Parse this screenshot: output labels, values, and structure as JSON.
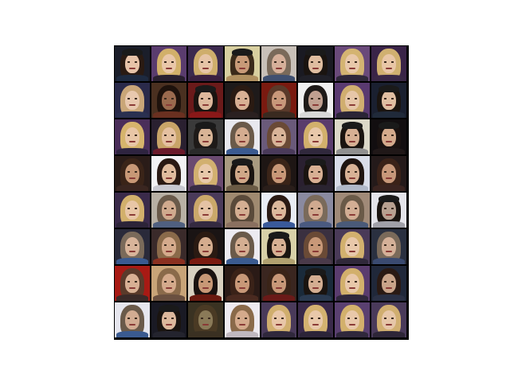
{
  "figure": {
    "rows": 8,
    "columns": 8,
    "tiles": [
      {
        "bg": "#1b1e2a",
        "hair": "#2a1a12",
        "skin": "#e7c3a8",
        "hat": true,
        "shoulder": "#1e2a40"
      },
      {
        "bg": "#5a3c6e",
        "hair": "#d2b06a",
        "skin": "#e9c7a9",
        "hat": false,
        "shoulder": "#2a2030"
      },
      {
        "bg": "#3c2a4e",
        "hair": "#cfae6c",
        "skin": "#e6c4a6",
        "hat": false,
        "shoulder": "#3a2040"
      },
      {
        "bg": "#d8cfa0",
        "hair": "#3a2a1a",
        "skin": "#c89a78",
        "hat": true,
        "shoulder": "#b09060"
      },
      {
        "bg": "#c8c0b8",
        "hair": "#7a6a5a",
        "skin": "#d6b09a",
        "hat": false,
        "shoulder": "#405070"
      },
      {
        "bg": "#1a1a22",
        "hair": "#1a1410",
        "skin": "#dfbda0",
        "hat": true,
        "shoulder": "#202028"
      },
      {
        "bg": "#6a4a7a",
        "hair": "#d4b472",
        "skin": "#e8c8aa",
        "hat": false,
        "shoulder": "#30283a"
      },
      {
        "bg": "#3a2448",
        "hair": "#d0b070",
        "skin": "#e8c6a6",
        "hat": false,
        "shoulder": "#3a2846"
      },
      {
        "bg": "#2a2a4a",
        "hair": "#c9a678",
        "skin": "#e8c8ae",
        "hat": false,
        "shoulder": "#2a3050"
      },
      {
        "bg": "#4a3020",
        "hair": "#1e120c",
        "skin": "#9a6a4e",
        "hat": false,
        "shoulder": "#6a3020"
      },
      {
        "bg": "#6a1a1a",
        "hair": "#1a1410",
        "skin": "#ddb89c",
        "hat": true,
        "shoulder": "#8a1818"
      },
      {
        "bg": "#1e1a1a",
        "hair": "#2a1a12",
        "skin": "#d8b094",
        "hat": false,
        "shoulder": "#2a2020"
      },
      {
        "bg": "#7a1a10",
        "hair": "#5a3a2a",
        "skin": "#c8987a",
        "hat": false,
        "shoulder": "#3a2a20"
      },
      {
        "bg": "#f0f0f0",
        "hair": "#1e1a18",
        "skin": "#c0a090",
        "hat": false,
        "shoulder": "#d8d8d8"
      },
      {
        "bg": "#5a3a70",
        "hair": "#d0ae70",
        "skin": "#e6c6a8",
        "hat": false,
        "shoulder": "#2a2436"
      },
      {
        "bg": "#1a2030",
        "hair": "#1a1410",
        "skin": "#e0bea2",
        "hat": true,
        "shoulder": "#202a3a"
      },
      {
        "bg": "#4a2e5a",
        "hair": "#d6b46c",
        "skin": "#e8c6a6",
        "hat": false,
        "shoulder": "#2e2440"
      },
      {
        "bg": "#2a2030",
        "hair": "#c8a468",
        "skin": "#e4c0a0",
        "hat": false,
        "shoulder": "#6a1a2a"
      },
      {
        "bg": "#3a3a3a",
        "hair": "#1e1a18",
        "skin": "#d8b496",
        "hat": true,
        "shoulder": "#2a2a2a"
      },
      {
        "bg": "#e8e8ee",
        "hair": "#6a5a4a",
        "skin": "#d4ac90",
        "hat": false,
        "shoulder": "#3a5a90"
      },
      {
        "bg": "#6a5a7a",
        "hair": "#6a4a36",
        "skin": "#d8b498",
        "hat": false,
        "shoulder": "#4a3a5a"
      },
      {
        "bg": "#5a3c6c",
        "hair": "#d2b06c",
        "skin": "#e8c8aa",
        "hat": false,
        "shoulder": "#30283c"
      },
      {
        "bg": "#dcd8c8",
        "hair": "#1a1410",
        "skin": "#d6b094",
        "hat": true,
        "shoulder": "#909090"
      },
      {
        "bg": "#120e10",
        "hair": "#1a1210",
        "skin": "#d4aa8c",
        "hat": true,
        "shoulder": "#201818"
      },
      {
        "bg": "#2a1c18",
        "hair": "#3a2418",
        "skin": "#c89876",
        "hat": false,
        "shoulder": "#3a2620"
      },
      {
        "bg": "#f2f2f4",
        "hair": "#2a1a14",
        "skin": "#e0bc9e",
        "hat": false,
        "shoulder": "#c8c8d0"
      },
      {
        "bg": "#6a4a70",
        "hair": "#d2b070",
        "skin": "#e8c8aa",
        "hat": false,
        "shoulder": "#3a2c44"
      },
      {
        "bg": "#a89a80",
        "hair": "#1a1410",
        "skin": "#d0a888",
        "hat": true,
        "shoulder": "#6a5a44"
      },
      {
        "bg": "#1e1614",
        "hair": "#3a2418",
        "skin": "#c89878",
        "hat": false,
        "shoulder": "#2a1e1a"
      },
      {
        "bg": "#2a2030",
        "hair": "#1a1410",
        "skin": "#d8b094",
        "hat": true,
        "shoulder": "#2a2430"
      },
      {
        "bg": "#d8dce8",
        "hair": "#1e1410",
        "skin": "#d8b296",
        "hat": false,
        "shoulder": "#b0b8c8"
      },
      {
        "bg": "#241a1a",
        "hair": "#3a2218",
        "skin": "#c8987a",
        "hat": false,
        "shoulder": "#3a2420"
      },
      {
        "bg": "#3a2a4a",
        "hair": "#d2b06c",
        "skin": "#e8c6a6",
        "hat": false,
        "shoulder": "#2c2438"
      },
      {
        "bg": "#b8b0a4",
        "hair": "#6a5a4a",
        "skin": "#d0aa8e",
        "hat": false,
        "shoulder": "#506080"
      },
      {
        "bg": "#4a3a5a",
        "hair": "#caa86a",
        "skin": "#e4c2a4",
        "hat": false,
        "shoulder": "#342a40"
      },
      {
        "bg": "#a08a70",
        "hair": "#5a4a3a",
        "skin": "#d4ae92",
        "hat": false,
        "shoulder": "#8a7060"
      },
      {
        "bg": "#e8ecf4",
        "hair": "#2a1a14",
        "skin": "#dcb89c",
        "hat": false,
        "shoulder": "#3a5a9a"
      },
      {
        "bg": "#8a8aa0",
        "hair": "#7a6a5a",
        "skin": "#d0aa90",
        "hat": false,
        "shoulder": "#4a5a80"
      },
      {
        "bg": "#a08a78",
        "hair": "#6a5a48",
        "skin": "#d2ae94",
        "hat": false,
        "shoulder": "#4a5a78"
      },
      {
        "bg": "#e4e4ea",
        "hair": "#1a1410",
        "skin": "#b8a090",
        "hat": true,
        "shoulder": "#a0a0a8"
      },
      {
        "bg": "#2a2a3a",
        "hair": "#7a6a5a",
        "skin": "#d8b49a",
        "hat": false,
        "shoulder": "#3a5a90"
      },
      {
        "bg": "#3a2a2a",
        "hair": "#8a6a4a",
        "skin": "#d4aa8c",
        "hat": false,
        "shoulder": "#8a3020"
      },
      {
        "bg": "#1a1414",
        "hair": "#2a1a12",
        "skin": "#d4ac8e",
        "hat": false,
        "shoulder": "#7a1a10"
      },
      {
        "bg": "#eceaf0",
        "hair": "#6a5a4a",
        "skin": "#d4ae92",
        "hat": false,
        "shoulder": "#3a5a90"
      },
      {
        "bg": "#d8d0a8",
        "hair": "#1a1410",
        "skin": "#d6b094",
        "hat": true,
        "shoulder": "#b0a070"
      },
      {
        "bg": "#3a3040",
        "hair": "#6a4a36",
        "skin": "#c89878",
        "hat": false,
        "shoulder": "#4a3a4a"
      },
      {
        "bg": "#4a3a58",
        "hair": "#d2b06e",
        "skin": "#e8c8aa",
        "hat": false,
        "shoulder": "#30283a"
      },
      {
        "bg": "#2a3040",
        "hair": "#7a6a5a",
        "skin": "#d4b098",
        "hat": false,
        "shoulder": "#3a4a70"
      },
      {
        "bg": "#a81a14",
        "hair": "#5a3a2a",
        "skin": "#d8b094",
        "hat": false,
        "shoulder": "#3a2a28"
      },
      {
        "bg": "#c8a478",
        "hair": "#8a6a4a",
        "skin": "#d4aa8c",
        "hat": false,
        "shoulder": "#6a5040"
      },
      {
        "bg": "#d8d0c0",
        "hair": "#1a1210",
        "skin": "#c89876",
        "hat": false,
        "shoulder": "#6a1a10"
      },
      {
        "bg": "#2a1a16",
        "hair": "#3a2218",
        "skin": "#c89878",
        "hat": false,
        "shoulder": "#4a2a20"
      },
      {
        "bg": "#3a2620",
        "hair": "#3a2418",
        "skin": "#c89878",
        "hat": false,
        "shoulder": "#6a1a18"
      },
      {
        "bg": "#1a2a3a",
        "hair": "#1a1410",
        "skin": "#d4ae92",
        "hat": true,
        "shoulder": "#2a3a50"
      },
      {
        "bg": "#5a3c6e",
        "hair": "#d2b06c",
        "skin": "#e8c8aa",
        "hat": false,
        "shoulder": "#30283c"
      },
      {
        "bg": "#20283a",
        "hair": "#2a1a14",
        "skin": "#c8a48a",
        "hat": false,
        "shoulder": "#2a3044"
      },
      {
        "bg": "#e6e6ee",
        "hair": "#6a5a4a",
        "skin": "#d2ac92",
        "hat": false,
        "shoulder": "#3a5a90"
      },
      {
        "bg": "#1a1a24",
        "hair": "#1a1410",
        "skin": "#dcb89c",
        "hat": true,
        "shoulder": "#24242e"
      },
      {
        "bg": "#3a3222",
        "hair": "#4a3a24",
        "skin": "#8a7a58",
        "hat": false,
        "shoulder": "#3a3022"
      },
      {
        "bg": "#eeeaf0",
        "hair": "#8a6a4a",
        "skin": "#d4aa8c",
        "hat": false,
        "shoulder": "#c0b8c0"
      },
      {
        "bg": "#4a3a5a",
        "hair": "#d0ae6e",
        "skin": "#e8c6a8",
        "hat": false,
        "shoulder": "#30283c"
      },
      {
        "bg": "#3a2a4a",
        "hair": "#d4b270",
        "skin": "#e8c8aa",
        "hat": false,
        "shoulder": "#2c2438"
      },
      {
        "bg": "#5a4070",
        "hair": "#d2b06c",
        "skin": "#e8c8aa",
        "hat": false,
        "shoulder": "#30283c"
      },
      {
        "bg": "#4a3a5a",
        "hair": "#d0ae70",
        "skin": "#e6c6a8",
        "hat": false,
        "shoulder": "#2e2638"
      }
    ]
  }
}
